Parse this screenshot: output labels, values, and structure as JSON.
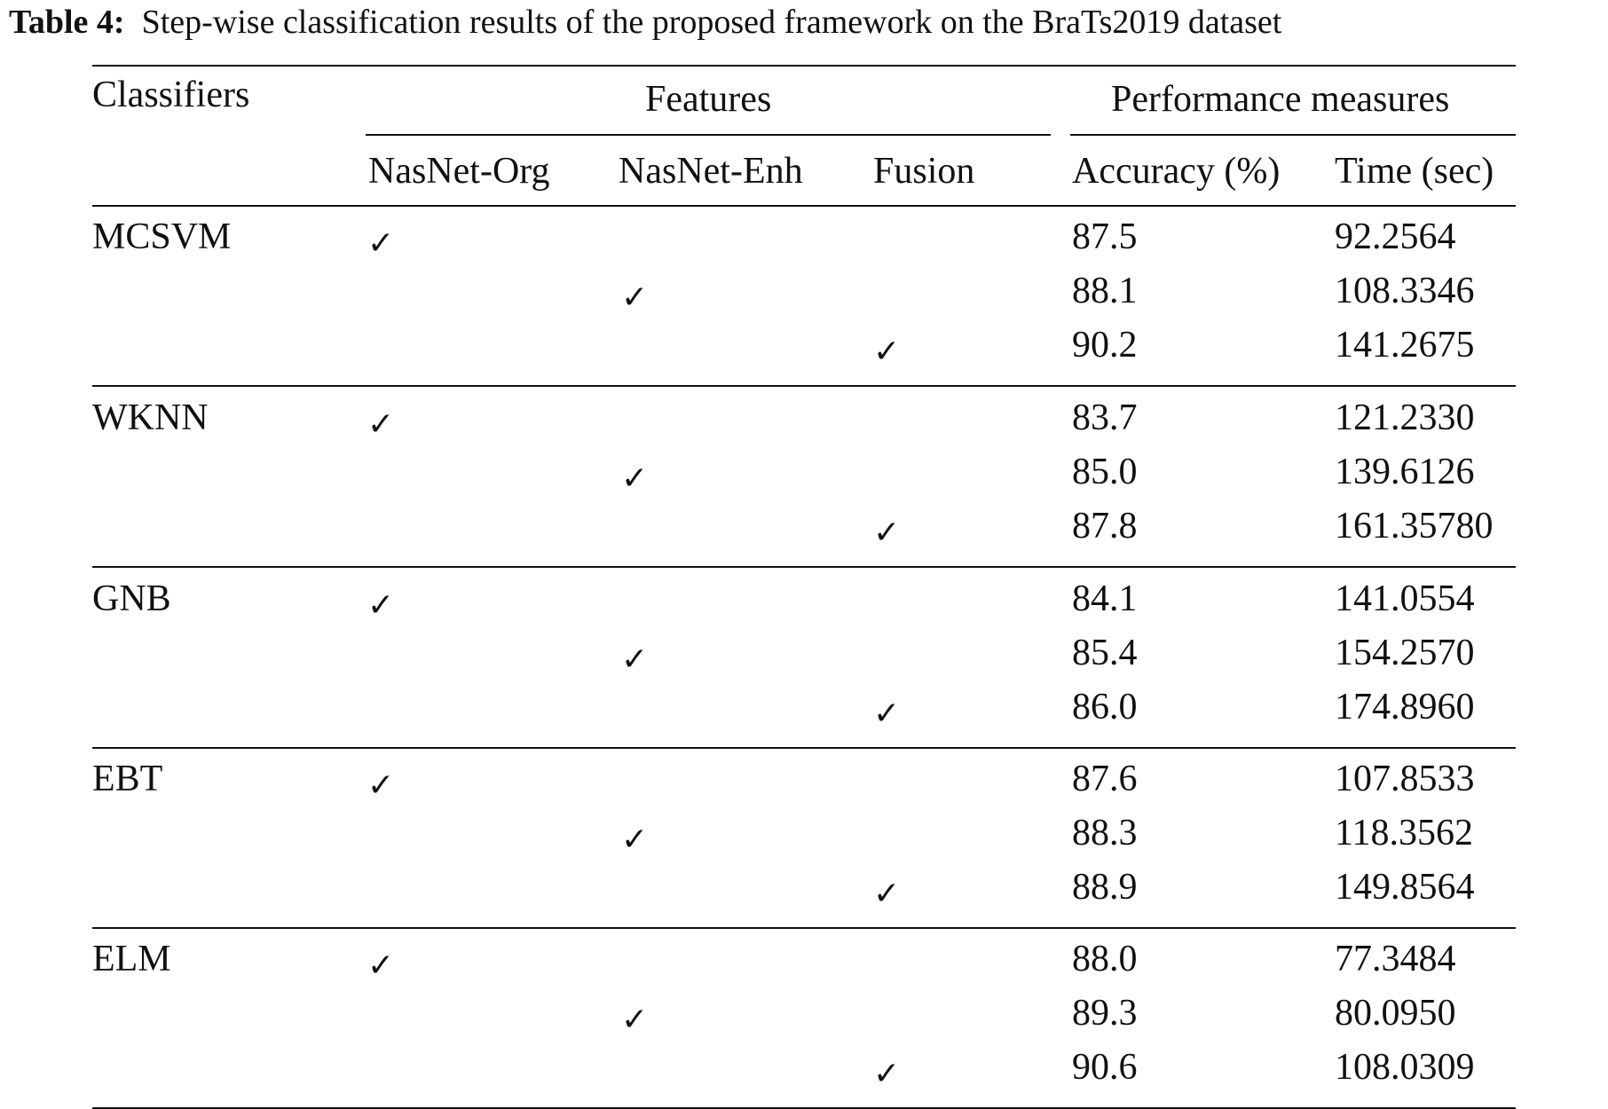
{
  "caption": {
    "label": "Table 4:",
    "text": "Step-wise classification results of the proposed framework on the BraTs2019 dataset"
  },
  "header": {
    "classifiers": "Classifiers",
    "features": "Features",
    "performance": "Performance measures",
    "nasnet_org": "NasNet-Org",
    "nasnet_enh": "NasNet-Enh",
    "fusion": "Fusion",
    "accuracy": "Accuracy (%)",
    "time": "Time (sec)"
  },
  "check_glyph": "✓",
  "groups": [
    {
      "name": "MCSVM",
      "rows": [
        {
          "feature": "org",
          "accuracy": "87.5",
          "time": "92.2564"
        },
        {
          "feature": "enh",
          "accuracy": "88.1",
          "time": "108.3346"
        },
        {
          "feature": "fusion",
          "accuracy": "90.2",
          "time": "141.2675"
        }
      ]
    },
    {
      "name": "WKNN",
      "rows": [
        {
          "feature": "org",
          "accuracy": "83.7",
          "time": "121.2330"
        },
        {
          "feature": "enh",
          "accuracy": "85.0",
          "time": "139.6126"
        },
        {
          "feature": "fusion",
          "accuracy": "87.8",
          "time": "161.35780"
        }
      ]
    },
    {
      "name": "GNB",
      "rows": [
        {
          "feature": "org",
          "accuracy": "84.1",
          "time": "141.0554"
        },
        {
          "feature": "enh",
          "accuracy": "85.4",
          "time": "154.2570"
        },
        {
          "feature": "fusion",
          "accuracy": "86.0",
          "time": "174.8960"
        }
      ]
    },
    {
      "name": "EBT",
      "rows": [
        {
          "feature": "org",
          "accuracy": "87.6",
          "time": "107.8533"
        },
        {
          "feature": "enh",
          "accuracy": "88.3",
          "time": "118.3562"
        },
        {
          "feature": "fusion",
          "accuracy": "88.9",
          "time": "149.8564"
        }
      ]
    },
    {
      "name": "ELM",
      "rows": [
        {
          "feature": "org",
          "accuracy": "88.0",
          "time": "77.3484"
        },
        {
          "feature": "enh",
          "accuracy": "89.3",
          "time": "80.0950"
        },
        {
          "feature": "fusion",
          "accuracy": "90.6",
          "time": "108.0309"
        }
      ]
    }
  ]
}
